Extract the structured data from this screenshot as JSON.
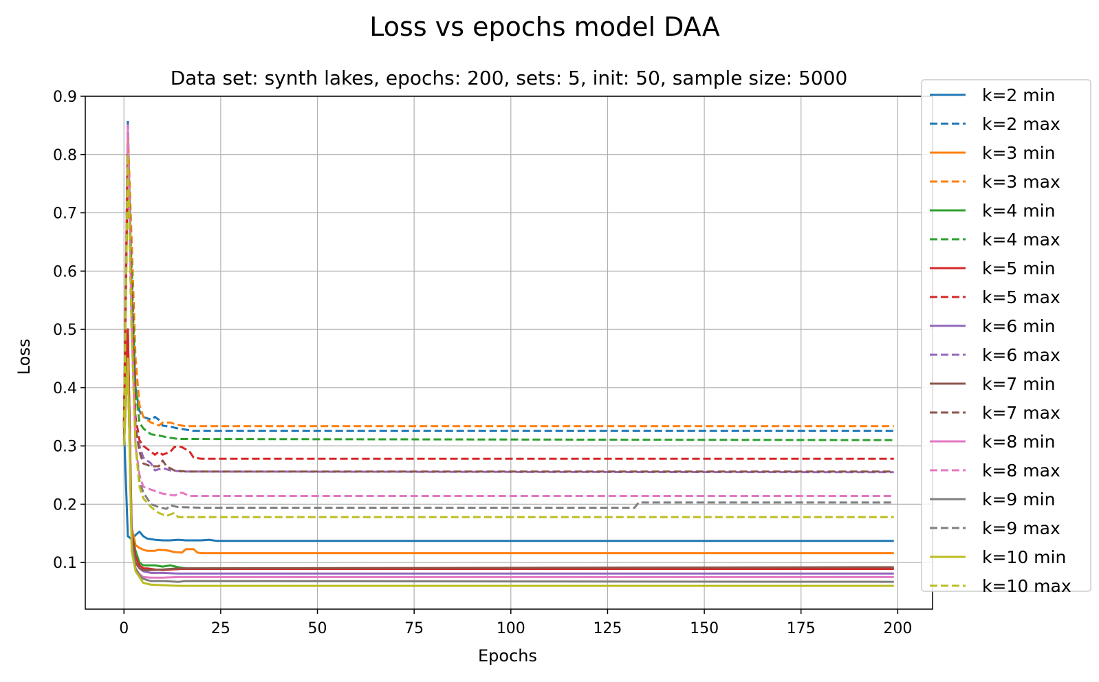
{
  "chart_data": {
    "type": "line",
    "title": "Loss vs epochs model DAA",
    "subtitle": "Data set:  synth lakes, epochs: 200, sets: 5, init: 50, sample size: 5000",
    "xlabel": "Epochs",
    "ylabel": "Loss",
    "xlim": [
      -10,
      209
    ],
    "ylim": [
      0.02,
      0.9
    ],
    "xticks": [
      0,
      25,
      50,
      75,
      100,
      125,
      150,
      175,
      200
    ],
    "yticks": [
      0.1,
      0.2,
      0.3,
      0.4,
      0.5,
      0.6,
      0.7,
      0.8,
      0.9
    ],
    "grid": true,
    "legend_position": "right, outside plot",
    "series": [
      {
        "name": "k=2 min",
        "color": "#1f77b4",
        "dash": "solid",
        "points": [
          [
            0,
            0.33
          ],
          [
            1,
            0.145
          ],
          [
            2,
            0.14
          ],
          [
            3,
            0.147
          ],
          [
            4,
            0.153
          ],
          [
            5,
            0.145
          ],
          [
            6,
            0.141
          ],
          [
            8,
            0.139
          ],
          [
            10,
            0.138
          ],
          [
            12,
            0.138
          ],
          [
            14,
            0.139
          ],
          [
            16,
            0.138
          ],
          [
            18,
            0.138
          ],
          [
            20,
            0.138
          ],
          [
            22,
            0.139
          ],
          [
            24,
            0.137
          ],
          [
            199,
            0.137
          ]
        ]
      },
      {
        "name": "k=2 max",
        "color": "#1f77b4",
        "dash": "dashed",
        "points": [
          [
            0,
            0.335
          ],
          [
            1,
            0.86
          ],
          [
            2,
            0.55
          ],
          [
            3,
            0.4
          ],
          [
            4,
            0.36
          ],
          [
            5,
            0.35
          ],
          [
            7,
            0.345
          ],
          [
            8,
            0.35
          ],
          [
            9,
            0.345
          ],
          [
            10,
            0.335
          ],
          [
            12,
            0.333
          ],
          [
            14,
            0.33
          ],
          [
            18,
            0.326
          ],
          [
            199,
            0.326
          ]
        ]
      },
      {
        "name": "k=3 min",
        "color": "#ff7f0e",
        "dash": "solid",
        "points": [
          [
            0,
            0.32
          ],
          [
            1,
            0.5
          ],
          [
            2,
            0.16
          ],
          [
            3,
            0.13
          ],
          [
            4,
            0.125
          ],
          [
            5,
            0.122
          ],
          [
            6,
            0.12
          ],
          [
            8,
            0.12
          ],
          [
            9,
            0.122
          ],
          [
            11,
            0.121
          ],
          [
            13,
            0.118
          ],
          [
            15,
            0.117
          ],
          [
            16,
            0.123
          ],
          [
            18,
            0.123
          ],
          [
            19,
            0.117
          ],
          [
            20,
            0.116
          ],
          [
            199,
            0.116
          ]
        ]
      },
      {
        "name": "k=3 max",
        "color": "#ff7f0e",
        "dash": "dashed",
        "points": [
          [
            0,
            0.34
          ],
          [
            1,
            0.84
          ],
          [
            2,
            0.65
          ],
          [
            3,
            0.45
          ],
          [
            4,
            0.37
          ],
          [
            5,
            0.35
          ],
          [
            7,
            0.34
          ],
          [
            9,
            0.335
          ],
          [
            10,
            0.34
          ],
          [
            12,
            0.34
          ],
          [
            14,
            0.336
          ],
          [
            16,
            0.334
          ],
          [
            199,
            0.334
          ]
        ]
      },
      {
        "name": "k=4 min",
        "color": "#2ca02c",
        "dash": "solid",
        "points": [
          [
            0,
            0.32
          ],
          [
            1,
            0.5
          ],
          [
            2,
            0.15
          ],
          [
            3,
            0.12
          ],
          [
            4,
            0.1
          ],
          [
            5,
            0.095
          ],
          [
            6,
            0.095
          ],
          [
            8,
            0.095
          ],
          [
            10,
            0.093
          ],
          [
            12,
            0.095
          ],
          [
            14,
            0.092
          ],
          [
            16,
            0.09
          ],
          [
            199,
            0.09
          ]
        ]
      },
      {
        "name": "k=4 max",
        "color": "#2ca02c",
        "dash": "dashed",
        "points": [
          [
            0,
            0.34
          ],
          [
            1,
            0.8
          ],
          [
            2,
            0.6
          ],
          [
            3,
            0.4
          ],
          [
            4,
            0.34
          ],
          [
            5,
            0.33
          ],
          [
            7,
            0.32
          ],
          [
            9,
            0.318
          ],
          [
            11,
            0.315
          ],
          [
            14,
            0.312
          ],
          [
            199,
            0.31
          ]
        ]
      },
      {
        "name": "k=5 min",
        "color": "#d62728",
        "dash": "solid",
        "points": [
          [
            0,
            0.32
          ],
          [
            1,
            0.5
          ],
          [
            2,
            0.15
          ],
          [
            3,
            0.11
          ],
          [
            4,
            0.095
          ],
          [
            5,
            0.09
          ],
          [
            6,
            0.09
          ],
          [
            8,
            0.088
          ],
          [
            10,
            0.087
          ],
          [
            12,
            0.088
          ],
          [
            15,
            0.089
          ],
          [
            199,
            0.089
          ]
        ]
      },
      {
        "name": "k=5 max",
        "color": "#d62728",
        "dash": "dashed",
        "points": [
          [
            0,
            0.34
          ],
          [
            1,
            0.8
          ],
          [
            2,
            0.55
          ],
          [
            3,
            0.35
          ],
          [
            4,
            0.31
          ],
          [
            5,
            0.3
          ],
          [
            7,
            0.29
          ],
          [
            8,
            0.285
          ],
          [
            9,
            0.29
          ],
          [
            10,
            0.285
          ],
          [
            12,
            0.29
          ],
          [
            13,
            0.298
          ],
          [
            15,
            0.298
          ],
          [
            17,
            0.29
          ],
          [
            18,
            0.28
          ],
          [
            20,
            0.278
          ],
          [
            199,
            0.278
          ]
        ]
      },
      {
        "name": "k=6 min",
        "color": "#9467bd",
        "dash": "solid",
        "points": [
          [
            0,
            0.31
          ],
          [
            1,
            0.45
          ],
          [
            2,
            0.14
          ],
          [
            3,
            0.1
          ],
          [
            4,
            0.09
          ],
          [
            5,
            0.085
          ],
          [
            7,
            0.082
          ],
          [
            10,
            0.082
          ],
          [
            14,
            0.081
          ],
          [
            199,
            0.081
          ]
        ]
      },
      {
        "name": "k=6 max",
        "color": "#9467bd",
        "dash": "dashed",
        "points": [
          [
            0,
            0.33
          ],
          [
            1,
            0.8
          ],
          [
            2,
            0.5
          ],
          [
            3,
            0.33
          ],
          [
            4,
            0.3
          ],
          [
            5,
            0.28
          ],
          [
            7,
            0.27
          ],
          [
            8,
            0.258
          ],
          [
            10,
            0.262
          ],
          [
            12,
            0.258
          ],
          [
            15,
            0.256
          ],
          [
            199,
            0.255
          ]
        ]
      },
      {
        "name": "k=7 min",
        "color": "#8c564b",
        "dash": "solid",
        "points": [
          [
            0,
            0.31
          ],
          [
            1,
            0.45
          ],
          [
            2,
            0.14
          ],
          [
            3,
            0.1
          ],
          [
            4,
            0.09
          ],
          [
            5,
            0.087
          ],
          [
            7,
            0.087
          ],
          [
            10,
            0.088
          ],
          [
            14,
            0.09
          ],
          [
            199,
            0.092
          ]
        ]
      },
      {
        "name": "k=7 max",
        "color": "#8c564b",
        "dash": "dashed",
        "points": [
          [
            0,
            0.33
          ],
          [
            1,
            0.8
          ],
          [
            2,
            0.5
          ],
          [
            3,
            0.33
          ],
          [
            4,
            0.29
          ],
          [
            5,
            0.27
          ],
          [
            7,
            0.265
          ],
          [
            9,
            0.265
          ],
          [
            10,
            0.275
          ],
          [
            11,
            0.265
          ],
          [
            13,
            0.258
          ],
          [
            16,
            0.256
          ],
          [
            199,
            0.256
          ]
        ]
      },
      {
        "name": "k=8 min",
        "color": "#e377c2",
        "dash": "solid",
        "points": [
          [
            0,
            0.3
          ],
          [
            1,
            0.45
          ],
          [
            2,
            0.13
          ],
          [
            3,
            0.09
          ],
          [
            4,
            0.08
          ],
          [
            5,
            0.075
          ],
          [
            7,
            0.074
          ],
          [
            10,
            0.074
          ],
          [
            14,
            0.075
          ],
          [
            199,
            0.075
          ]
        ]
      },
      {
        "name": "k=8 max",
        "color": "#e377c2",
        "dash": "dashed",
        "points": [
          [
            0,
            0.33
          ],
          [
            1,
            0.85
          ],
          [
            2,
            0.5
          ],
          [
            3,
            0.3
          ],
          [
            4,
            0.25
          ],
          [
            5,
            0.23
          ],
          [
            7,
            0.225
          ],
          [
            10,
            0.218
          ],
          [
            13,
            0.215
          ],
          [
            15,
            0.22
          ],
          [
            17,
            0.214
          ],
          [
            199,
            0.214
          ]
        ]
      },
      {
        "name": "k=9 min",
        "color": "#7f7f7f",
        "dash": "solid",
        "points": [
          [
            0,
            0.3
          ],
          [
            1,
            0.45
          ],
          [
            2,
            0.13
          ],
          [
            3,
            0.09
          ],
          [
            4,
            0.078
          ],
          [
            5,
            0.072
          ],
          [
            7,
            0.068
          ],
          [
            10,
            0.068
          ],
          [
            14,
            0.067
          ],
          [
            16,
            0.068
          ],
          [
            199,
            0.067
          ]
        ]
      },
      {
        "name": "k=9 max",
        "color": "#7f7f7f",
        "dash": "dashed",
        "points": [
          [
            0,
            0.33
          ],
          [
            1,
            0.8
          ],
          [
            2,
            0.5
          ],
          [
            3,
            0.3
          ],
          [
            4,
            0.24
          ],
          [
            5,
            0.22
          ],
          [
            6,
            0.21
          ],
          [
            7,
            0.2
          ],
          [
            9,
            0.195
          ],
          [
            11,
            0.192
          ],
          [
            12,
            0.198
          ],
          [
            14,
            0.195
          ],
          [
            20,
            0.194
          ],
          [
            132,
            0.194
          ],
          [
            133,
            0.203
          ],
          [
            199,
            0.203
          ]
        ]
      },
      {
        "name": "k=10 min",
        "color": "#bcbd22",
        "dash": "solid",
        "points": [
          [
            0,
            0.3
          ],
          [
            1,
            0.45
          ],
          [
            2,
            0.12
          ],
          [
            3,
            0.085
          ],
          [
            4,
            0.075
          ],
          [
            5,
            0.065
          ],
          [
            7,
            0.062
          ],
          [
            10,
            0.061
          ],
          [
            14,
            0.06
          ],
          [
            199,
            0.06
          ]
        ]
      },
      {
        "name": "k=10 max",
        "color": "#bcbd22",
        "dash": "dashed",
        "points": [
          [
            0,
            0.33
          ],
          [
            1,
            0.8
          ],
          [
            2,
            0.5
          ],
          [
            3,
            0.3
          ],
          [
            4,
            0.23
          ],
          [
            5,
            0.21
          ],
          [
            7,
            0.195
          ],
          [
            9,
            0.185
          ],
          [
            11,
            0.18
          ],
          [
            13,
            0.185
          ],
          [
            14,
            0.178
          ],
          [
            199,
            0.178
          ]
        ]
      }
    ]
  }
}
